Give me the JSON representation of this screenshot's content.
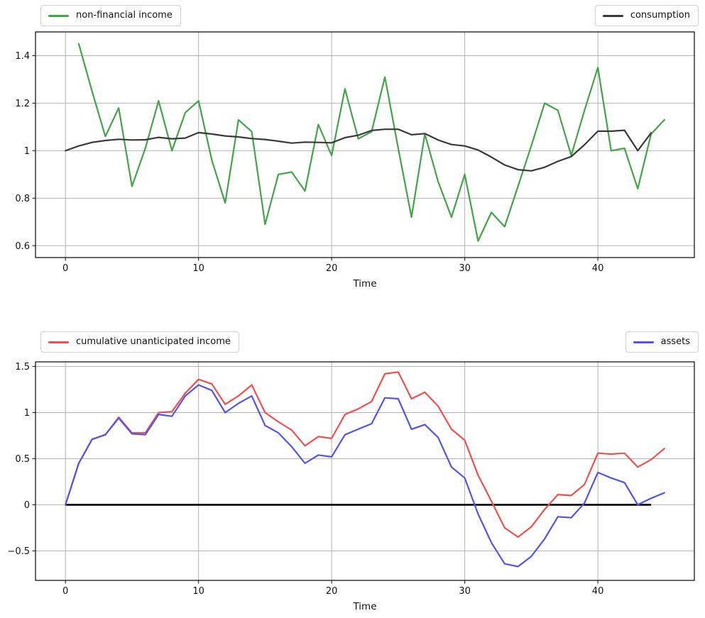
{
  "figure": {
    "background": "#ffffff",
    "grid_color": "#b3b3b3",
    "spine_color": "#000000",
    "tick_text_color": "#111111"
  },
  "chart_data": [
    {
      "type": "line",
      "title": "",
      "xlabel": "Time",
      "ylabel": "",
      "grid": true,
      "xlim": [
        -2.25,
        47.25
      ],
      "ylim": [
        0.55,
        1.5
      ],
      "xticks": [
        0,
        10,
        20,
        30,
        40
      ],
      "yticks": [
        0.6,
        0.8,
        1.0,
        1.2,
        1.4
      ],
      "legend": [
        {
          "label": "non-financial income",
          "color": "#45a349",
          "position": "top-left"
        },
        {
          "label": "consumption",
          "color": "#3a3a3a",
          "position": "top-right"
        }
      ],
      "series": [
        {
          "name": "non-financial income",
          "color": "#45a349",
          "x_start": 1,
          "values": [
            1.45,
            1.25,
            1.06,
            1.18,
            0.85,
            1.01,
            1.21,
            1.0,
            1.16,
            1.21,
            0.96,
            0.78,
            1.13,
            1.08,
            0.69,
            0.9,
            0.91,
            0.83,
            1.11,
            0.98,
            1.26,
            1.05,
            1.08,
            1.31,
            1.01,
            0.72,
            1.07,
            0.87,
            0.72,
            0.9,
            0.62,
            0.74,
            0.68,
            0.85,
            1.02,
            1.2,
            1.17,
            0.98,
            1.17,
            1.35,
            1.0,
            1.01,
            0.84,
            1.07,
            1.13
          ]
        },
        {
          "name": "consumption",
          "color": "#3a3a3a",
          "x_start": 0,
          "values": [
            1.0,
            1.02,
            1.035,
            1.043,
            1.048,
            1.045,
            1.046,
            1.056,
            1.05,
            1.053,
            1.076,
            1.07,
            1.062,
            1.058,
            1.051,
            1.047,
            1.04,
            1.032,
            1.036,
            1.035,
            1.033,
            1.055,
            1.065,
            1.085,
            1.09,
            1.09,
            1.067,
            1.072,
            1.045,
            1.026,
            1.02,
            1.003,
            0.973,
            0.94,
            0.92,
            0.915,
            0.93,
            0.955,
            0.975,
            1.025,
            1.082,
            1.082,
            1.086,
            1.0,
            1.075
          ]
        }
      ]
    },
    {
      "type": "line",
      "title": "",
      "xlabel": "Time",
      "ylabel": "",
      "grid": true,
      "xlim": [
        -2.25,
        47.25
      ],
      "ylim": [
        -0.82,
        1.55
      ],
      "xticks": [
        0,
        10,
        20,
        30,
        40
      ],
      "yticks": [
        -0.5,
        0.0,
        0.5,
        1.0,
        1.5
      ],
      "zero_line": {
        "x_start": 0,
        "x_end": 44,
        "y": 0.0,
        "color": "#000000"
      },
      "legend": [
        {
          "label": "cumulative unanticipated income",
          "color": "#f05050",
          "position": "top-left"
        },
        {
          "label": "assets",
          "color": "#5454e6",
          "position": "top-right"
        }
      ],
      "series": [
        {
          "name": "cumulative unanticipated income",
          "color": "#f05050",
          "x_start": 0,
          "values": [
            0.0,
            0.45,
            0.71,
            0.76,
            0.95,
            0.78,
            0.78,
            1.0,
            1.01,
            1.21,
            1.36,
            1.31,
            1.09,
            1.18,
            1.3,
            1.0,
            0.9,
            0.81,
            0.64,
            0.74,
            0.72,
            0.98,
            1.04,
            1.12,
            1.42,
            1.44,
            1.15,
            1.22,
            1.07,
            0.82,
            0.7,
            0.32,
            0.04,
            -0.25,
            -0.35,
            -0.24,
            -0.05,
            0.11,
            0.1,
            0.22,
            0.56,
            0.55,
            0.56,
            0.41,
            0.49,
            0.61
          ]
        },
        {
          "name": "assets",
          "color": "#5454e6",
          "x_start": 0,
          "values": [
            0.0,
            0.45,
            0.71,
            0.76,
            0.94,
            0.77,
            0.76,
            0.98,
            0.96,
            1.18,
            1.3,
            1.24,
            1.0,
            1.1,
            1.18,
            0.86,
            0.78,
            0.63,
            0.45,
            0.54,
            0.52,
            0.76,
            0.82,
            0.88,
            1.16,
            1.15,
            0.82,
            0.87,
            0.73,
            0.41,
            0.29,
            -0.1,
            -0.41,
            -0.64,
            -0.67,
            -0.56,
            -0.37,
            -0.13,
            -0.14,
            0.02,
            0.35,
            0.29,
            0.24,
            0.0,
            0.07,
            0.13
          ]
        }
      ]
    }
  ]
}
